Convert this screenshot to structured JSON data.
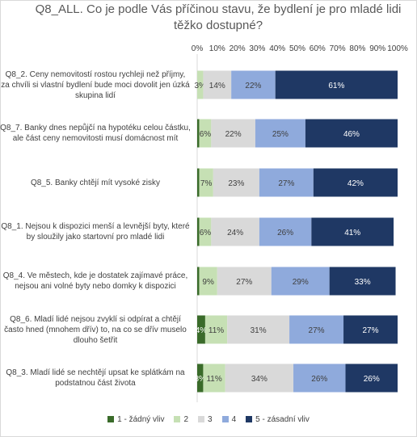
{
  "chart_data": {
    "type": "bar",
    "orientation": "horizontal",
    "stacked": "percent",
    "title": "Q8_ALL. Co je podle Vás příčinou stavu, že bydlení je pro mladé lidi těžko dostupné?",
    "categories": [
      "Q8_2. Ceny nemovitostí rostou rychleji než příjmy, za chvíli si vlastní bydlení bude moci dovolit jen úzká skupina lidí",
      "Q8_7. Banky dnes nepůjčí na hypotéku celou částku, ale část ceny nemovitosti musí domácnost mít",
      "Q8_5. Banky chtějí mít vysoké zisky",
      "Q8_1. Nejsou k dispozici menší a levnější byty, které by sloužily jako startovní pro mladé lidi",
      "Q8_4. Ve městech, kde je dostatek zajímavé práce, nejsou ani volné byty nebo domky k dispozici",
      "Q8_6. Mladí lidé nejsou zvyklí si odpírat a chtějí často hned (mnohem dřív) to, na co se dřív muselo dlouho šetřit",
      "Q8_3. Mladí lidé se nechtějí upsat ke splátkám na podstatnou část života"
    ],
    "series": [
      {
        "name": "1 - žádný vliv",
        "color": "#3a6b2a",
        "values": [
          0,
          1,
          1,
          1,
          1,
          4,
          3
        ],
        "labels": [
          "",
          "",
          "",
          "",
          "",
          "4%",
          "3%"
        ]
      },
      {
        "name": "2",
        "color": "#c6e0b4",
        "values": [
          3,
          6,
          7,
          6,
          9,
          11,
          11
        ],
        "labels": [
          "3%",
          "6%",
          "7%",
          "6%",
          "9%",
          "11%",
          "11%"
        ]
      },
      {
        "name": "3",
        "color": "#d9d9d9",
        "values": [
          14,
          22,
          23,
          24,
          27,
          31,
          34
        ],
        "labels": [
          "14%",
          "22%",
          "23%",
          "24%",
          "27%",
          "31%",
          "34%"
        ]
      },
      {
        "name": "4",
        "color": "#8faadc",
        "values": [
          22,
          25,
          27,
          26,
          29,
          27,
          26
        ],
        "labels": [
          "22%",
          "25%",
          "27%",
          "26%",
          "29%",
          "27%",
          "26%"
        ]
      },
      {
        "name": "5 - zásadní vliv",
        "color": "#1f3864",
        "values": [
          61,
          46,
          42,
          41,
          33,
          27,
          26
        ],
        "labels": [
          "61%",
          "46%",
          "42%",
          "41%",
          "33%",
          "27%",
          "26%"
        ]
      }
    ],
    "xlim": [
      0,
      100
    ],
    "x_ticks": [
      "0%",
      "10%",
      "20%",
      "30%",
      "40%",
      "50%",
      "60%",
      "70%",
      "80%",
      "90%",
      "100%"
    ],
    "legend_position": "bottom"
  }
}
